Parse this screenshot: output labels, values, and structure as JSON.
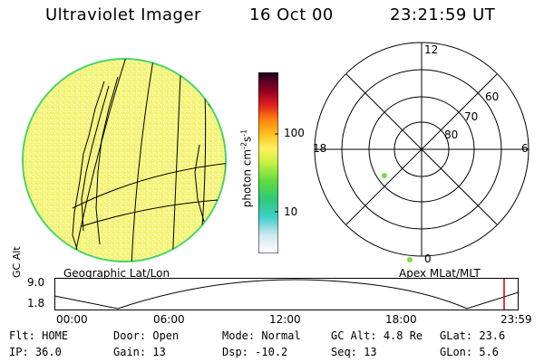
{
  "header": {
    "instrument": "Ultraviolet Imager",
    "date": "16 Oct 00",
    "time": "23:21:59 UT"
  },
  "colorbar": {
    "unit_label": "photon cm",
    "unit_sup1": "-2",
    "unit_mid": "s",
    "unit_sup2": "-1",
    "ticks": [
      "100",
      "10"
    ]
  },
  "polar_plot": {
    "mlt_labels": [
      "12",
      "18",
      "6",
      "0"
    ],
    "lat_labels": [
      "60",
      "70",
      "80"
    ]
  },
  "projection_labels": {
    "left": "Geographic Lat/Lon",
    "right": "Apex MLat/MLT"
  },
  "altitude_panel": {
    "axis_label_line1": "GC",
    "axis_label_line2": "Alt",
    "y_ticks": [
      "9.0",
      "1.8"
    ],
    "x_ticks": [
      "00:00",
      "06:00",
      "12:00",
      "18:00",
      "23:59"
    ]
  },
  "status": [
    [
      {
        "label": "Flt:",
        "value": "HOME"
      },
      {
        "label": "IP:",
        "value": "36.0"
      }
    ],
    [
      {
        "label": "Door:",
        "value": "Open"
      },
      {
        "label": "Gain:",
        "value": "13"
      }
    ],
    [
      {
        "label": "Mode:",
        "value": "Normal"
      },
      {
        "label": "Dsp:",
        "value": "-10.2"
      }
    ],
    [
      {
        "label": "GC Alt:",
        "value": "4.8 Re"
      },
      {
        "label": "Seq:",
        "value": "13"
      }
    ],
    [
      {
        "label": "GLat:",
        "value": "23.6"
      },
      {
        "label": "GLon:",
        "value": "5.6"
      }
    ]
  ],
  "colors": {
    "disk_fill": "#f2f27a",
    "disk_rim": "#4cd46a",
    "current_time_marker": "#cc0000"
  }
}
